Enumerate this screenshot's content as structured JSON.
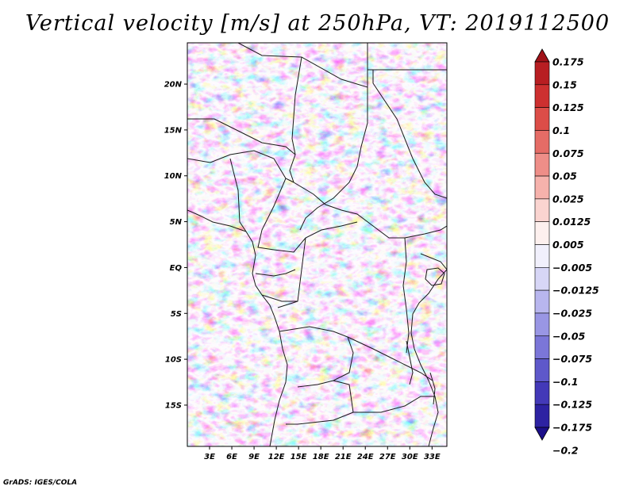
{
  "title": "Vertical velocity [m/s] at 250hPa, VT: 2019112500",
  "credit": "GrADS: IGES/COLA",
  "map": {
    "lat_ticks": [
      "20N",
      "15N",
      "10N",
      "5N",
      "EQ",
      "5S",
      "10S",
      "15S"
    ],
    "lon_ticks": [
      "3E",
      "6E",
      "9E",
      "12E",
      "15E",
      "18E",
      "21E",
      "24E",
      "27E",
      "30E",
      "33E"
    ],
    "lat_range": [
      -19.5,
      24.5
    ],
    "lon_range": [
      0,
      35
    ]
  },
  "colorbar": {
    "labels": [
      "0.175",
      "0.15",
      "0.125",
      "0.1",
      "0.075",
      "0.05",
      "0.025",
      "0.0125",
      "0.005",
      "-0.005",
      "-0.0125",
      "-0.025",
      "-0.05",
      "-0.075",
      "-0.1",
      "-0.125",
      "-0.175",
      "-0.2"
    ],
    "colors": [
      "#a01218",
      "#b81e22",
      "#cd3030",
      "#dc4d48",
      "#e56c66",
      "#ee8e88",
      "#f6b2ac",
      "#fad4d0",
      "#fdf0ee",
      "#f1f0fc",
      "#d7d6f6",
      "#b8b6ee",
      "#9996e4",
      "#7b76d8",
      "#5e58ca",
      "#4339b8",
      "#2d22a2",
      "#1c0f8a"
    ]
  }
}
